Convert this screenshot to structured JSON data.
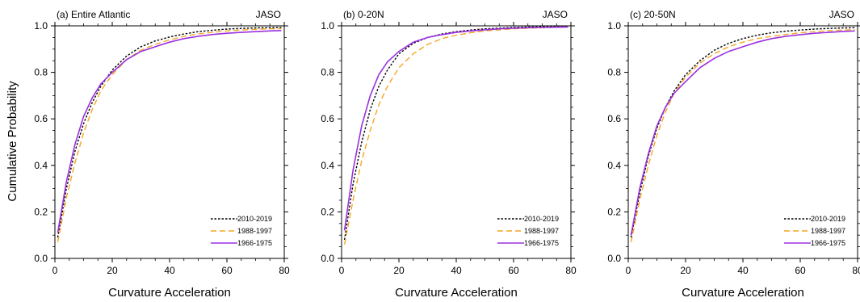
{
  "figure": {
    "ylabel": "Cumulative Probability",
    "xlabel": "Curvature Acceleration"
  },
  "legend_entries": [
    {
      "name": "2010-2019",
      "color": "#000000",
      "style": "dotted"
    },
    {
      "name": "1988-1997",
      "color": "#f5a623",
      "style": "dashed"
    },
    {
      "name": "1966-1975",
      "color": "#9b30e0",
      "style": "solid"
    }
  ],
  "chart_data": [
    {
      "type": "line",
      "title": "(a) Entire Atlantic",
      "season": "JASO",
      "xlabel": "Curvature Acceleration",
      "ylabel": "Cumulative Probability",
      "xlim": [
        0,
        80
      ],
      "ylim": [
        0,
        1
      ],
      "xticks": [
        "0",
        "20",
        "40",
        "60",
        "80"
      ],
      "yticks": [
        "0.0",
        "0.2",
        "0.4",
        "0.6",
        "0.8",
        "1.0"
      ],
      "grid": false,
      "legend": "bottom-right",
      "x": [
        1,
        4,
        7,
        10,
        13,
        16,
        20,
        25,
        30,
        35,
        40,
        45,
        50,
        55,
        60,
        65,
        70,
        75,
        79
      ],
      "series": [
        {
          "name": "2010-2019",
          "values": [
            0.09,
            0.3,
            0.46,
            0.58,
            0.67,
            0.74,
            0.81,
            0.87,
            0.91,
            0.935,
            0.952,
            0.965,
            0.975,
            0.981,
            0.986,
            0.989,
            0.991,
            0.992,
            0.993
          ]
        },
        {
          "name": "1988-1997",
          "values": [
            0.07,
            0.26,
            0.41,
            0.54,
            0.64,
            0.72,
            0.79,
            0.855,
            0.895,
            0.92,
            0.94,
            0.955,
            0.965,
            0.972,
            0.978,
            0.982,
            0.985,
            0.987,
            0.988
          ]
        },
        {
          "name": "1966-1975",
          "values": [
            0.11,
            0.33,
            0.49,
            0.61,
            0.69,
            0.75,
            0.8,
            0.855,
            0.89,
            0.91,
            0.93,
            0.945,
            0.955,
            0.963,
            0.968,
            0.972,
            0.975,
            0.978,
            0.98
          ]
        }
      ]
    },
    {
      "type": "line",
      "title": "(b) 0-20N",
      "season": "JASO",
      "xlabel": "Curvature Acceleration",
      "ylabel": "",
      "xlim": [
        0,
        80
      ],
      "ylim": [
        0,
        1
      ],
      "xticks": [
        "0",
        "20",
        "40",
        "60",
        "80"
      ],
      "yticks": [
        "0.0",
        "0.2",
        "0.4",
        "0.6",
        "0.8",
        "1.0"
      ],
      "grid": false,
      "legend": "bottom-right",
      "x": [
        1,
        4,
        7,
        10,
        13,
        16,
        20,
        25,
        30,
        35,
        40,
        45,
        50,
        55,
        60,
        65,
        70,
        75,
        79
      ],
      "series": [
        {
          "name": "2010-2019",
          "values": [
            0.08,
            0.32,
            0.5,
            0.64,
            0.74,
            0.81,
            0.88,
            0.925,
            0.95,
            0.965,
            0.975,
            0.982,
            0.987,
            0.99,
            0.993,
            0.995,
            0.996,
            0.997,
            0.998
          ]
        },
        {
          "name": "1988-1997",
          "values": [
            0.06,
            0.25,
            0.42,
            0.55,
            0.66,
            0.74,
            0.82,
            0.88,
            0.92,
            0.945,
            0.96,
            0.97,
            0.978,
            0.983,
            0.987,
            0.99,
            0.992,
            0.994,
            0.995
          ]
        },
        {
          "name": "1966-1975",
          "values": [
            0.12,
            0.38,
            0.57,
            0.7,
            0.79,
            0.845,
            0.89,
            0.93,
            0.95,
            0.962,
            0.972,
            0.978,
            0.983,
            0.987,
            0.99,
            0.992,
            0.993,
            0.994,
            0.995
          ]
        }
      ]
    },
    {
      "type": "line",
      "title": "(c) 20-50N",
      "season": "JASO",
      "xlabel": "Curvature Acceleration",
      "ylabel": "",
      "xlim": [
        0,
        80
      ],
      "ylim": [
        0,
        1
      ],
      "xticks": [
        "0",
        "20",
        "40",
        "60",
        "80"
      ],
      "yticks": [
        "0.0",
        "0.2",
        "0.4",
        "0.6",
        "0.8",
        "1.0"
      ],
      "grid": false,
      "legend": "bottom-right",
      "x": [
        1,
        4,
        7,
        10,
        13,
        16,
        20,
        25,
        30,
        35,
        40,
        45,
        50,
        55,
        60,
        65,
        70,
        75,
        79
      ],
      "series": [
        {
          "name": "2010-2019",
          "values": [
            0.09,
            0.28,
            0.44,
            0.56,
            0.65,
            0.72,
            0.79,
            0.85,
            0.895,
            0.925,
            0.945,
            0.96,
            0.97,
            0.977,
            0.982,
            0.986,
            0.989,
            0.991,
            0.992
          ]
        },
        {
          "name": "1988-1997",
          "values": [
            0.07,
            0.25,
            0.4,
            0.53,
            0.63,
            0.71,
            0.78,
            0.84,
            0.88,
            0.91,
            0.93,
            0.945,
            0.955,
            0.963,
            0.97,
            0.975,
            0.979,
            0.982,
            0.984
          ]
        },
        {
          "name": "1966-1975",
          "values": [
            0.1,
            0.3,
            0.45,
            0.57,
            0.65,
            0.71,
            0.76,
            0.82,
            0.86,
            0.89,
            0.91,
            0.93,
            0.945,
            0.955,
            0.962,
            0.968,
            0.972,
            0.976,
            0.978
          ]
        }
      ]
    }
  ]
}
